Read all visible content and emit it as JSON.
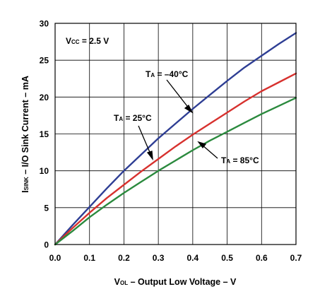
{
  "chart_data": {
    "type": "line",
    "xlabel": {
      "main": "V",
      "sub": "OL",
      "rest": " – Output Low Voltage – V"
    },
    "ylabel": {
      "main": "I",
      "sub": "SINK",
      "rest": " – I/O Sink Current – mA"
    },
    "xlim": [
      0,
      0.7
    ],
    "ylim": [
      0,
      30
    ],
    "x_ticks": [
      "0.0",
      "0.1",
      "0.2",
      "0.3",
      "0.4",
      "0.5",
      "0.6",
      "0.7"
    ],
    "y_ticks": [
      "0",
      "5",
      "10",
      "15",
      "20",
      "25",
      "30"
    ],
    "grid": true,
    "series": [
      {
        "name": "T_A = –40°C",
        "color": "#2e3e94",
        "points": [
          [
            0,
            0
          ],
          [
            0.05,
            2.6
          ],
          [
            0.1,
            5.1
          ],
          [
            0.15,
            7.6
          ],
          [
            0.2,
            10.0
          ],
          [
            0.25,
            12.2
          ],
          [
            0.3,
            14.4
          ],
          [
            0.35,
            16.4
          ],
          [
            0.4,
            18.4
          ],
          [
            0.45,
            20.3
          ],
          [
            0.5,
            22.2
          ],
          [
            0.55,
            24.0
          ],
          [
            0.6,
            25.6
          ],
          [
            0.65,
            27.2
          ],
          [
            0.7,
            28.7
          ]
        ]
      },
      {
        "name": "T_A = 25°C",
        "color": "#d7312e",
        "points": [
          [
            0,
            0
          ],
          [
            0.05,
            2.2
          ],
          [
            0.1,
            4.3
          ],
          [
            0.15,
            6.3
          ],
          [
            0.2,
            8.1
          ],
          [
            0.25,
            9.9
          ],
          [
            0.3,
            11.6
          ],
          [
            0.35,
            13.3
          ],
          [
            0.4,
            14.9
          ],
          [
            0.45,
            16.4
          ],
          [
            0.5,
            17.9
          ],
          [
            0.55,
            19.4
          ],
          [
            0.6,
            20.8
          ],
          [
            0.65,
            22.0
          ],
          [
            0.7,
            23.2
          ]
        ]
      },
      {
        "name": "T_A = 85°C",
        "color": "#2b8a3e",
        "points": [
          [
            0,
            0
          ],
          [
            0.05,
            1.8
          ],
          [
            0.1,
            3.7
          ],
          [
            0.15,
            5.4
          ],
          [
            0.2,
            7.0
          ],
          [
            0.25,
            8.5
          ],
          [
            0.3,
            10.0
          ],
          [
            0.35,
            11.4
          ],
          [
            0.4,
            12.8
          ],
          [
            0.45,
            14.1
          ],
          [
            0.5,
            15.3
          ],
          [
            0.55,
            16.5
          ],
          [
            0.6,
            17.7
          ],
          [
            0.65,
            18.8
          ],
          [
            0.7,
            19.9
          ]
        ]
      }
    ],
    "annotations": [
      {
        "main": "V",
        "sub": "CC",
        "rest": " = 2.5 V"
      },
      {
        "main": "T",
        "sub": "A",
        "rest": " = –40°C"
      },
      {
        "main": "T",
        "sub": "A",
        "rest": " = 25°C"
      },
      {
        "main": "T",
        "sub": "A",
        "rest": " = 85°C"
      }
    ]
  }
}
